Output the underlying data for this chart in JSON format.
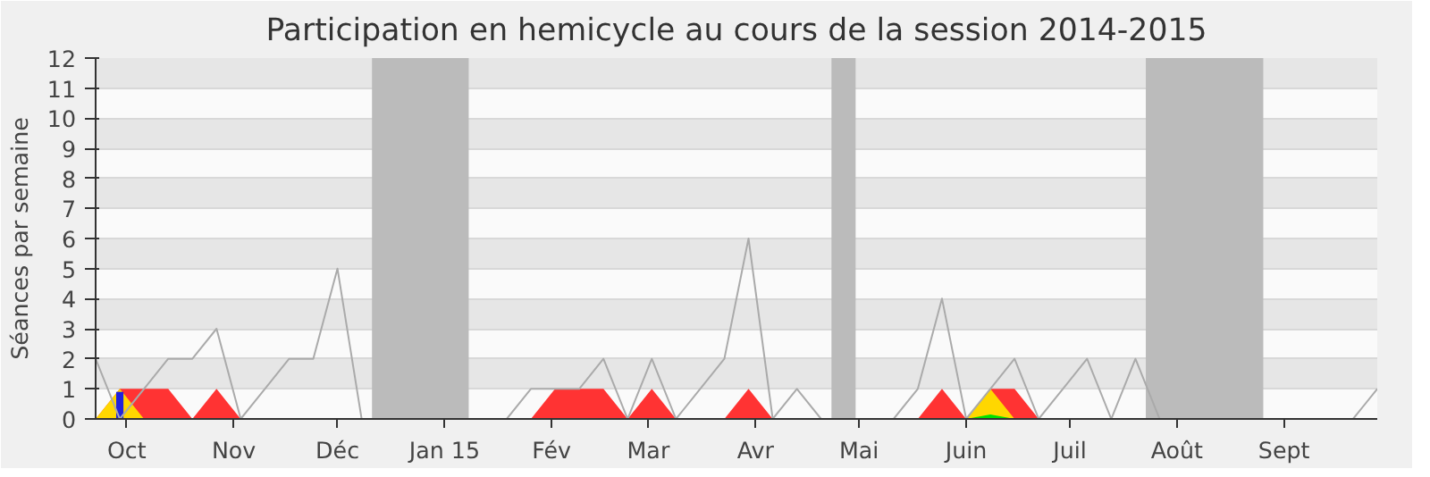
{
  "chart_data": {
    "type": "line",
    "title": "Participation en hemicycle au cours de la session 2014-2015",
    "ylabel": "Séances par semaine",
    "x": [
      "2014-09-22",
      "2014-09-29",
      "2014-10-06",
      "2014-10-13",
      "2014-10-20",
      "2014-10-27",
      "2014-11-03",
      "2014-11-10",
      "2014-11-17",
      "2014-11-24",
      "2014-12-01",
      "2014-12-08",
      "2014-12-15",
      "2014-12-22",
      "2014-12-29",
      "2015-01-05",
      "2015-01-12",
      "2015-01-19",
      "2015-01-26",
      "2015-02-02",
      "2015-02-09",
      "2015-02-16",
      "2015-02-23",
      "2015-03-02",
      "2015-03-09",
      "2015-03-16",
      "2015-03-23",
      "2015-03-30",
      "2015-04-06",
      "2015-04-13",
      "2015-04-20",
      "2015-04-27",
      "2015-05-04",
      "2015-05-11",
      "2015-05-18",
      "2015-05-25",
      "2015-06-01",
      "2015-06-08",
      "2015-06-15",
      "2015-06-22",
      "2015-06-29",
      "2015-07-06",
      "2015-07-13",
      "2015-07-20",
      "2015-07-27",
      "2015-08-03",
      "2015-08-10",
      "2015-08-17",
      "2015-08-24",
      "2015-08-31",
      "2015-09-07",
      "2015-09-14",
      "2015-09-21",
      "2015-09-28"
    ],
    "series": [
      {
        "type": "area",
        "color": "#ff3333",
        "values": [
          0,
          1,
          1,
          1,
          0,
          1,
          0,
          0,
          0,
          0,
          0,
          0,
          0,
          0,
          0,
          0,
          0,
          0,
          0,
          1,
          1,
          1,
          0,
          1,
          0,
          0,
          0,
          1,
          0,
          0,
          0,
          0,
          0,
          0,
          0,
          1,
          0,
          1,
          1,
          0,
          0,
          0,
          0,
          0,
          0,
          0,
          0,
          0,
          0,
          0,
          0,
          0,
          0,
          0
        ]
      },
      {
        "type": "area",
        "color": "#ffd700",
        "values": [
          0,
          1,
          0,
          null,
          null,
          null,
          null,
          null,
          null,
          null,
          null,
          null,
          null,
          null,
          null,
          null,
          null,
          null,
          null,
          null,
          null,
          null,
          null,
          null,
          null,
          null,
          null,
          null,
          null,
          null,
          null,
          null,
          null,
          null,
          null,
          null,
          0,
          1,
          0,
          null,
          null,
          null,
          null,
          null,
          null,
          null,
          null,
          null,
          null,
          null,
          null,
          null,
          null,
          null
        ]
      },
      {
        "type": "area",
        "color": "#00e000",
        "values": [
          null,
          null,
          null,
          null,
          null,
          null,
          null,
          null,
          null,
          null,
          null,
          null,
          null,
          null,
          null,
          null,
          null,
          null,
          null,
          null,
          null,
          null,
          null,
          null,
          null,
          null,
          null,
          null,
          null,
          null,
          null,
          null,
          null,
          null,
          null,
          null,
          0,
          0.15,
          0,
          null,
          null,
          null,
          null,
          null,
          null,
          null,
          null,
          null,
          null,
          null,
          null,
          null,
          null,
          null
        ]
      },
      {
        "type": "bar",
        "color": "#2222dd",
        "values": [
          0,
          0.9,
          0,
          0,
          0,
          0,
          0,
          0,
          0,
          0,
          0,
          0,
          0,
          0,
          0,
          0,
          0,
          0,
          0,
          0,
          0,
          0,
          0,
          0,
          0,
          0,
          0,
          0,
          0,
          0,
          0,
          0,
          0,
          0,
          0,
          0,
          0,
          0,
          0,
          0,
          0,
          0,
          0,
          0,
          0,
          0,
          0,
          0,
          0,
          0,
          0,
          0,
          0,
          0
        ]
      },
      {
        "color": "#aaaaaa",
        "values": [
          2,
          0,
          1,
          2,
          2,
          3,
          0,
          1,
          2,
          2,
          5,
          0,
          0,
          0,
          0,
          0,
          0,
          0,
          1,
          1,
          1,
          2,
          0,
          2,
          0,
          1,
          2,
          6,
          0,
          1,
          0,
          0,
          0,
          0,
          1,
          4,
          0,
          1,
          2,
          0,
          1,
          2,
          0,
          2,
          0,
          0,
          0,
          0,
          0,
          0,
          0,
          0,
          0,
          1
        ]
      }
    ],
    "xlim": [
      "2014-09-22",
      "2015-09-28"
    ],
    "ylim": [
      0,
      12
    ],
    "xticks": [
      {
        "value": "2014-10-01",
        "label": "Oct"
      },
      {
        "value": "2014-11-01",
        "label": "Nov"
      },
      {
        "value": "2014-12-01",
        "label": "Déc"
      },
      {
        "value": "2015-01-01",
        "label": "Jan 15"
      },
      {
        "value": "2015-02-01",
        "label": "Fév"
      },
      {
        "value": "2015-03-01",
        "label": "Mar"
      },
      {
        "value": "2015-04-01",
        "label": "Avr"
      },
      {
        "value": "2015-05-01",
        "label": "Mai"
      },
      {
        "value": "2015-06-01",
        "label": "Juin"
      },
      {
        "value": "2015-07-01",
        "label": "Juil"
      },
      {
        "value": "2015-08-01",
        "label": "Août"
      },
      {
        "value": "2015-09-01",
        "label": "Sept"
      }
    ],
    "yticks": [
      0,
      1,
      2,
      3,
      4,
      5,
      6,
      7,
      8,
      9,
      10,
      11,
      12
    ],
    "bands": [
      {
        "axis": "x",
        "from": "2014-12-11",
        "to": "2015-01-08",
        "color": "#bbbbbb"
      },
      {
        "axis": "x",
        "from": "2015-04-23",
        "to": "2015-04-30",
        "color": "#bbbbbb"
      },
      {
        "axis": "x",
        "from": "2015-07-23",
        "to": "2015-08-26",
        "color": "#bbbbbb"
      }
    ],
    "grid": "y"
  }
}
